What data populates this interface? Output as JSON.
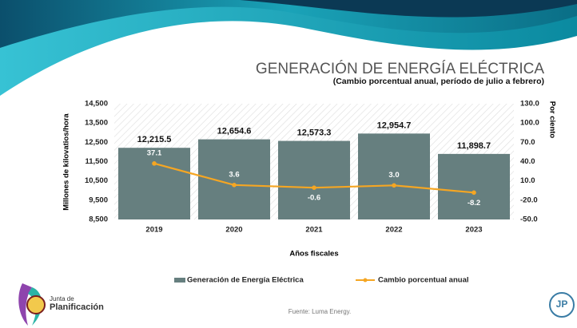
{
  "chart_data": {
    "type": "bar-line",
    "title": "GENERACIÓN DE ENERGÍA ELÉCTRICA",
    "subtitle": "(Cambio porcentual anual, período de julio a febrero)",
    "y_label": "Millones de kilovatios/hora",
    "y2_label": "Por ciento",
    "x_label": "Años fiscales",
    "source": "Fuente: Luma Energy.",
    "categories": [
      "2019",
      "2020",
      "2021",
      "2022",
      "2023"
    ],
    "series": [
      {
        "name": "Generación de Energía Eléctrica",
        "type": "bar",
        "color": "#667f7f",
        "values": [
          12215.5,
          12654.6,
          12573.3,
          12954.7,
          11898.7
        ],
        "value_labels": [
          "12,215.5",
          "12,654.6",
          "12,573.3",
          "12,954.7",
          "11,898.7"
        ]
      },
      {
        "name": "Cambio porcentual anual",
        "type": "line",
        "axis": "y2",
        "color": "#f5a623",
        "values": [
          37.1,
          3.6,
          -0.6,
          3.0,
          -8.2
        ],
        "value_labels": [
          "37.1",
          "3.6",
          "-0.6",
          "3.0",
          "-8.2"
        ]
      }
    ],
    "ylim": [
      8500,
      14500
    ],
    "yticks": [
      {
        "value": 8500,
        "label": "8,500"
      },
      {
        "value": 9500,
        "label": "9,500"
      },
      {
        "value": 10500,
        "label": "10,500"
      },
      {
        "value": 11500,
        "label": "11,500"
      },
      {
        "value": 12500,
        "label": "12,500"
      },
      {
        "value": 13500,
        "label": "13,500"
      },
      {
        "value": 14500,
        "label": "14,500"
      }
    ],
    "y2lim": [
      -50,
      130
    ],
    "y2ticks": [
      {
        "value": -50,
        "label": "-50.0"
      },
      {
        "value": -20,
        "label": "-20.0"
      },
      {
        "value": 10,
        "label": "10.0"
      },
      {
        "value": 40,
        "label": "40.0"
      },
      {
        "value": 70,
        "label": "70.0"
      },
      {
        "value": 100,
        "label": "100.0"
      },
      {
        "value": 130,
        "label": "130.0"
      }
    ],
    "legend": "bottom"
  },
  "branding": {
    "line1": "Junta de",
    "line2": "Planificación",
    "badge": "JP"
  }
}
